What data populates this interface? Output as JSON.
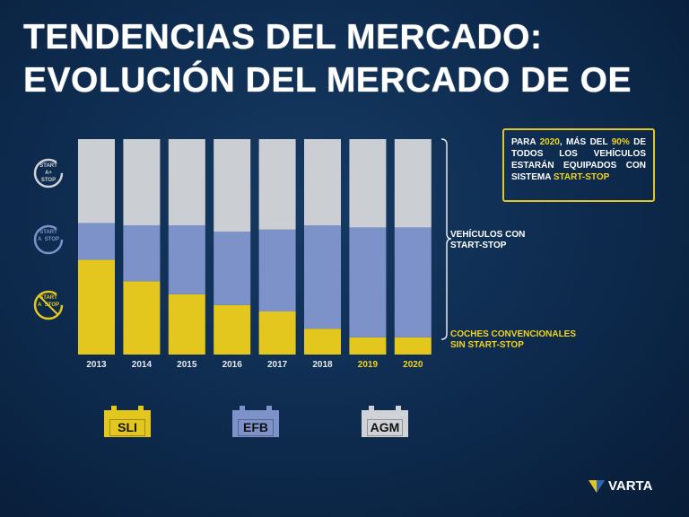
{
  "title": {
    "line1": "TENDENCIAS DEL MERCADO:",
    "line2": "EVOLUCIÓN DEL MERCADO DE OE"
  },
  "callout": {
    "p1": "PARA ",
    "year": "2020",
    "p2": ", MÁS DEL ",
    "pct": "90%",
    "p3": " DE TODOS LOS VEHÍCULOS ESTARÁN EQUIPADOS CON SISTEMA ",
    "hl": "START-STOP"
  },
  "labels": {
    "start_stop_l1": "VEHÍCULOS CON",
    "start_stop_l2": "START-STOP",
    "conv_l1": "COCHES CONVENCIONALES",
    "conv_l2": "SIN START-STOP"
  },
  "icons": [
    {
      "name": "agm-start-stop-icon",
      "text": "START A+ STOP"
    },
    {
      "name": "efb-start-stop-icon",
      "text": "START A STOP"
    },
    {
      "name": "no-start-stop-icon",
      "text": "START A STOP"
    }
  ],
  "batteries": [
    {
      "label": "SLI",
      "color": "#e3c71e"
    },
    {
      "label": "EFB",
      "color": "#7d92c9"
    },
    {
      "label": "AGM",
      "color": "#cfd2d6"
    }
  ],
  "brand": {
    "name": "VARTA"
  },
  "colors": {
    "background": "#0d2a4d",
    "sli": "#e3c71e",
    "efb": "#7d92c9",
    "agm": "#cbced2",
    "highlight": "#f2d41c"
  },
  "chart_data": {
    "type": "bar",
    "stacked": true,
    "categories": [
      "2013",
      "2014",
      "2015",
      "2016",
      "2017",
      "2018",
      "2019",
      "2020"
    ],
    "highlighted_categories": [
      "2019",
      "2020"
    ],
    "series": [
      {
        "name": "SLI",
        "color": "#e3c71e",
        "values": [
          44,
          34,
          28,
          23,
          20,
          12,
          8,
          8
        ]
      },
      {
        "name": "EFB",
        "color": "#7d92c9",
        "values": [
          17,
          26,
          32,
          34,
          38,
          48,
          51,
          51
        ]
      },
      {
        "name": "AGM",
        "color": "#cbced2",
        "values": [
          39,
          40,
          40,
          43,
          42,
          40,
          41,
          41
        ]
      }
    ],
    "ylim": [
      0,
      100
    ],
    "grid": false
  }
}
